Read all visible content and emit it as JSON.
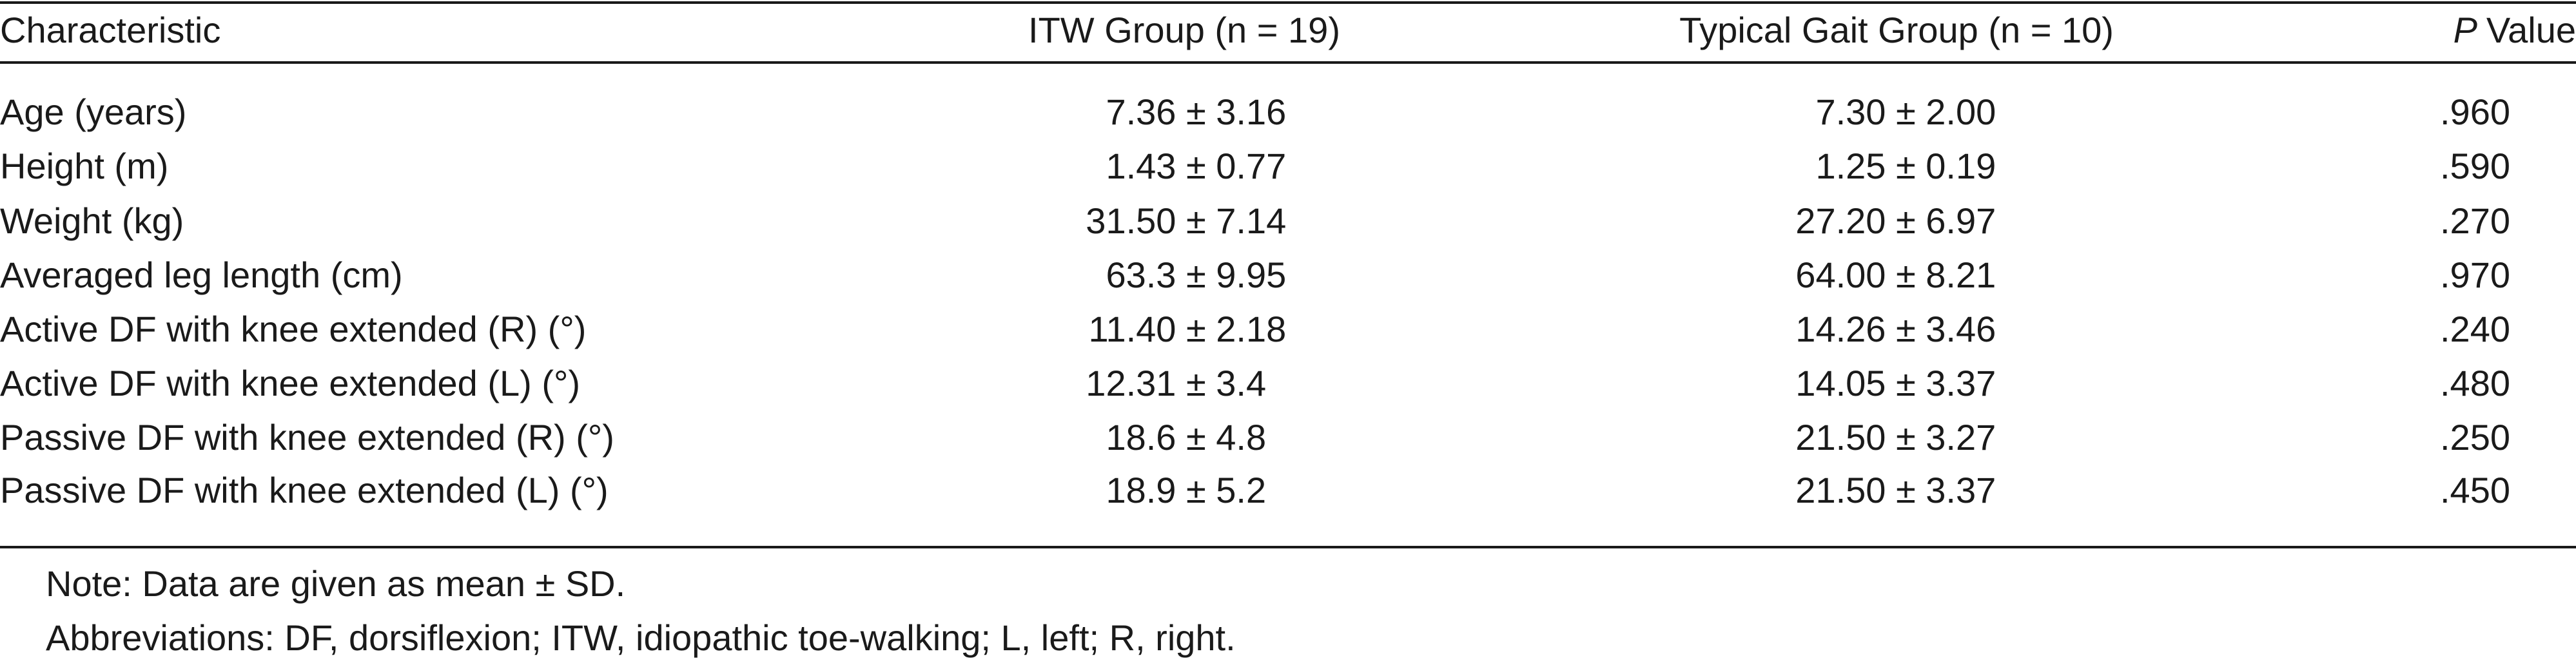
{
  "table": {
    "header": [
      "Characteristic",
      "ITW Group (n = 19)",
      "Typical Gait Group (n = 10)",
      {
        "italic": "P",
        "rest": "Value"
      }
    ],
    "rows": [
      [
        "Age (years)",
        "7.36 ± 3.16",
        "7.30 ± 2.00",
        ".960"
      ],
      [
        "Height (m)",
        "1.43 ± 0.77",
        "1.25 ± 0.19",
        ".590"
      ],
      [
        "Weight (kg)",
        "31.50 ± 7.14",
        "27.20 ± 6.97",
        ".270"
      ],
      [
        "Averaged leg length (cm)",
        "63.3 ± 9.95",
        "64.00 ± 8.21",
        ".970"
      ],
      [
        "Active DF with knee extended (R) (°)",
        "11.40 ± 2.18",
        "14.26 ± 3.46",
        ".240"
      ],
      [
        "Active DF with knee extended (L) (°)",
        "12.31 ± 3.4",
        "14.05 ± 3.37",
        ".480"
      ],
      [
        "Passive DF with knee extended (R) (°)",
        "18.6 ± 4.8",
        "21.50 ± 3.27",
        ".250"
      ],
      [
        "Passive DF with knee extended (L) (°)",
        "18.9 ± 5.2",
        "21.50 ± 3.37",
        ".450"
      ]
    ],
    "notes": [
      "Note: Data are given as mean ± SD.",
      "Abbreviations: DF, dorsiflexion; ITW, idiopathic toe-walking; L, left; R, right."
    ]
  }
}
